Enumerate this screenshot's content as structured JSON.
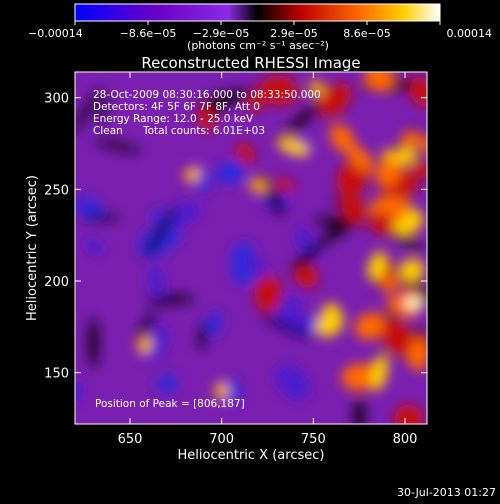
{
  "chart_data": {
    "type": "heatmap",
    "title": "Reconstructed RHESSI Image",
    "xlabel": "Heliocentric X (arcsec)",
    "ylabel": "Heliocentric Y (arcsec)",
    "xlim": [
      620,
      812
    ],
    "ylim": [
      122,
      314
    ],
    "x_ticks": [
      650,
      700,
      750,
      800
    ],
    "y_ticks": [
      150,
      200,
      250,
      300
    ],
    "colorbar": {
      "label": "(photons cm⁻² s⁻¹ asec⁻²)",
      "range": [
        -0.00014,
        0.00014
      ],
      "tick_labels": [
        "−0.00014",
        "−8.6e−05",
        "−2.9e−05",
        "2.9e−05",
        "8.6e−05",
        "0.00014"
      ],
      "colors": [
        "#0000ff",
        "#6a00c8",
        "#8a2be2",
        "#000000",
        "#c00000",
        "#ff6a00",
        "#ffd000",
        "#ffffff"
      ]
    },
    "annotations": {
      "time": "28-Oct-2009 08:30:16.000 to 08:33:50.000",
      "detectors": "Detectors: 4F 5F 6F 7F 8F, Att 0",
      "energy": "Energy Range: 12.0 - 25.0 keV",
      "method": "Clean",
      "counts": "Total counts: 6.01E+03",
      "peak": "Position of Peak = [806,187]"
    },
    "peak": [
      806,
      187
    ],
    "footer_timestamp": "30-Jul-2013 01:27"
  }
}
